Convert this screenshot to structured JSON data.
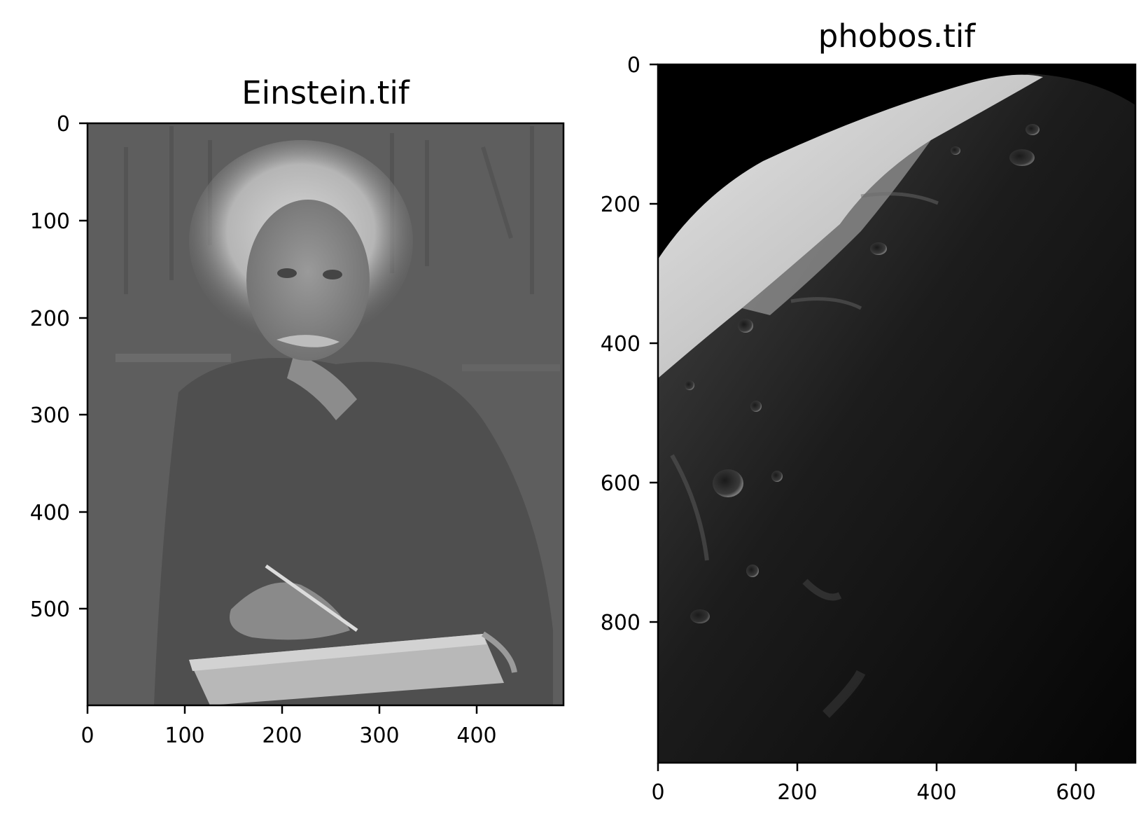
{
  "panels": [
    {
      "title": "Einstein.tif",
      "image_description_icon": "einstein-portrait-grayscale",
      "xticks": [
        "0",
        "100",
        "200",
        "300",
        "400"
      ],
      "yticks": [
        "0",
        "100",
        "200",
        "300",
        "400",
        "500"
      ],
      "colors": {
        "background": "#5e5e5e",
        "highlight": "#c8c8c8"
      }
    },
    {
      "title": "phobos.tif",
      "image_description_icon": "phobos-moon-surface-grayscale",
      "xticks": [
        "0",
        "200",
        "400",
        "600"
      ],
      "yticks": [
        "0",
        "200",
        "400",
        "600",
        "800"
      ],
      "colors": {
        "background": "#000000",
        "highlight": "#d8d8d8"
      }
    }
  ]
}
